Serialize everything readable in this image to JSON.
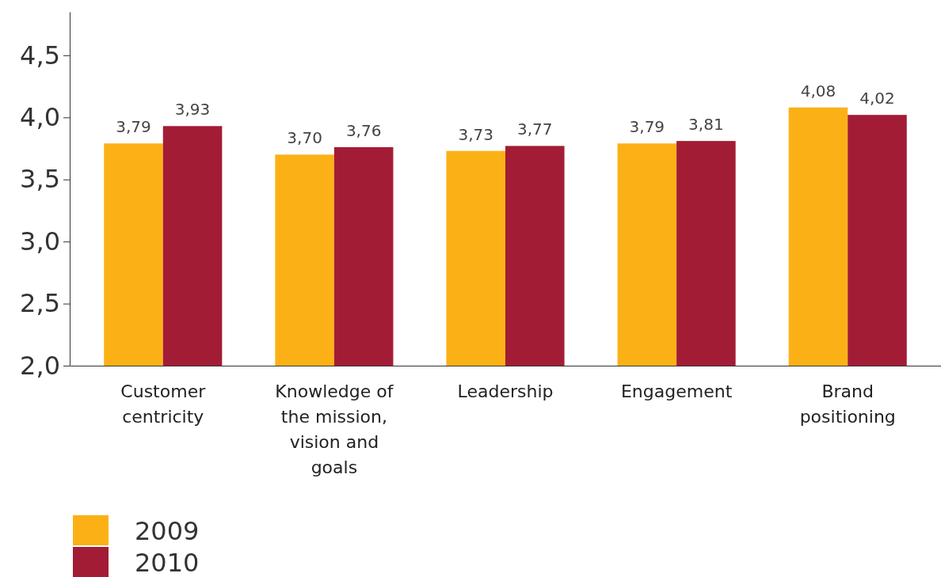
{
  "chart_data": {
    "type": "bar",
    "categories": [
      "Customer centricity",
      "Knowledge of the mission, vision and goals",
      "Leadership",
      "Engagement",
      "Brand positioning"
    ],
    "series": [
      {
        "name": "2009",
        "color": "#fbb116",
        "values": [
          3.79,
          3.7,
          3.73,
          3.79,
          4.08
        ],
        "value_labels": [
          "3,79",
          "3,70",
          "3,73",
          "3,79",
          "4,08"
        ]
      },
      {
        "name": "2010",
        "color": "#a31c35",
        "values": [
          3.93,
          3.76,
          3.77,
          3.81,
          4.02
        ],
        "value_labels": [
          "3,93",
          "3,76",
          "3,77",
          "3,81",
          "4,02"
        ]
      }
    ],
    "ylim": [
      2,
      4.85
    ],
    "yticks": [
      {
        "value": 2,
        "label": "2,0"
      },
      {
        "value": 2.5,
        "label": "2,5"
      },
      {
        "value": 3,
        "label": "3,0"
      },
      {
        "value": 3.5,
        "label": "3,5"
      },
      {
        "value": 4,
        "label": "4,0"
      },
      {
        "value": 4.5,
        "label": "4,5"
      }
    ],
    "grid": false,
    "legend": "bottom left"
  }
}
